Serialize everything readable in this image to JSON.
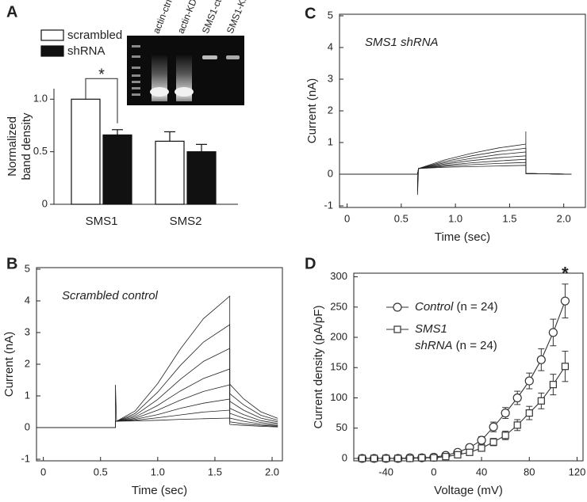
{
  "chart_data": [
    {
      "panel": "A",
      "type": "bar",
      "ylabel": [
        "Normalized",
        "band density"
      ],
      "categories": [
        "SMS1",
        "SMS2"
      ],
      "ylim": [
        0,
        1.1
      ],
      "yticks": [
        0,
        0.5,
        {
          "value": 1,
          "label": "1.0"
        }
      ],
      "series": [
        {
          "name": "scrambled",
          "color": "#ffffff",
          "values": [
            1,
            0.6
          ],
          "errors": [
            null,
            0.09
          ]
        },
        {
          "name": "shRNA",
          "color": "#111111",
          "values": [
            0.66,
            0.5
          ],
          "errors": [
            0.05,
            0.07
          ]
        }
      ],
      "legend": "upper-left",
      "significance": "*",
      "gel_lanes": [
        "actin-ctrl",
        "actin-KD",
        "SMS1-ctrl",
        "SMS1-KD"
      ]
    },
    {
      "panel": "B",
      "type": "line",
      "annotation": "Scrambled control",
      "xlabel": "Time (sec)",
      "ylabel": "Current (nA)",
      "xlim": [
        -0.06,
        2.09
      ],
      "ylim": [
        -1.05,
        5.05
      ],
      "xticks": [
        0,
        0.5,
        {
          "value": 1,
          "label": "1.0"
        },
        1.5,
        {
          "value": 2,
          "label": "2.0"
        }
      ],
      "yticks": [
        -1,
        0,
        1,
        2,
        3,
        4,
        5
      ],
      "x": [
        -0.06,
        0.63,
        0.63,
        0.64,
        0.8,
        1.0,
        1.2,
        1.4,
        1.63,
        1.63,
        1.75,
        1.9,
        2.05
      ],
      "series": [
        {
          "color": "#222222",
          "values": [
            0,
            0,
            1.35,
            0.2,
            0.52,
            1.39,
            2.49,
            3.44,
            4.15,
            1.37,
            0.91,
            0.5,
            0.29
          ]
        },
        {
          "color": "#222222",
          "values": [
            0,
            0,
            0.2,
            0.2,
            0.44,
            1.12,
            1.97,
            2.7,
            3.25,
            1.07,
            0.72,
            0.39,
            0.23
          ]
        },
        {
          "color": "#222222",
          "values": [
            0,
            0,
            0.2,
            0.2,
            0.38,
            0.89,
            1.53,
            2.09,
            2.5,
            0.83,
            0.55,
            0.3,
            0.18
          ]
        },
        {
          "color": "#222222",
          "values": [
            0,
            0,
            0.2,
            0.2,
            0.33,
            0.7,
            1.16,
            1.55,
            1.85,
            0.61,
            0.41,
            0.22,
            0.13
          ]
        },
        {
          "color": "#222222",
          "values": [
            0,
            0,
            0.2,
            0.2,
            0.29,
            0.55,
            0.87,
            1.14,
            1.35,
            0.45,
            0.3,
            0.16,
            0.09
          ]
        },
        {
          "color": "#222222",
          "values": [
            0,
            0,
            0.2,
            0.2,
            0.26,
            0.41,
            0.61,
            0.77,
            0.9,
            0.3,
            0.2,
            0.11,
            0.06
          ]
        },
        {
          "color": "#222222",
          "values": [
            0,
            0,
            0.2,
            0.2,
            0.23,
            0.31,
            0.4,
            0.49,
            0.55,
            0.18,
            0.12,
            0.07,
            0.04
          ]
        },
        {
          "color": "#222222",
          "values": [
            0,
            0,
            0.2,
            0.2,
            0.21,
            0.23,
            0.26,
            0.28,
            0.3,
            0.1,
            0.07,
            0.04,
            0.02
          ]
        }
      ]
    },
    {
      "panel": "C",
      "type": "line",
      "annotation": "SMS1 shRNA",
      "xlabel": "Time (sec)",
      "ylabel": "Current (nA)",
      "xlim": [
        -0.07,
        2.2
      ],
      "ylim": [
        -1.05,
        5.05
      ],
      "xticks": [
        0,
        0.5,
        {
          "value": 1,
          "label": "1.0"
        },
        1.5,
        {
          "value": 2,
          "label": "2.0"
        }
      ],
      "yticks": [
        -1,
        0,
        1,
        2,
        3,
        4,
        5
      ],
      "x": [
        -0.07,
        0.65,
        0.65,
        0.66,
        0.9,
        1.15,
        1.4,
        1.65,
        1.65,
        1.65,
        2.07
      ],
      "series": [
        {
          "color": "#222222",
          "values": [
            0,
            0,
            -0.65,
            0.18,
            0.45,
            0.66,
            0.83,
            0.95,
            1.35,
            0.02,
            0
          ]
        },
        {
          "color": "#222222",
          "values": [
            0,
            0,
            0,
            0.18,
            0.4,
            0.58,
            0.72,
            0.82,
            0.82,
            0.02,
            0
          ]
        },
        {
          "color": "#222222",
          "values": [
            0,
            0,
            0,
            0.18,
            0.36,
            0.5,
            0.62,
            0.7,
            0.7,
            0.02,
            0
          ]
        },
        {
          "color": "#222222",
          "values": [
            0,
            0,
            0,
            0.18,
            0.32,
            0.43,
            0.52,
            0.58,
            0.58,
            0.02,
            0
          ]
        },
        {
          "color": "#222222",
          "values": [
            0,
            0,
            0,
            0.18,
            0.28,
            0.36,
            0.42,
            0.47,
            0.47,
            0.02,
            0
          ]
        },
        {
          "color": "#222222",
          "values": [
            0,
            0,
            0,
            0.18,
            0.25,
            0.3,
            0.34,
            0.37,
            0.37,
            0.02,
            0
          ]
        },
        {
          "color": "#222222",
          "values": [
            0,
            0,
            0,
            0.18,
            0.22,
            0.24,
            0.26,
            0.28,
            0.28,
            0.02,
            0
          ]
        }
      ]
    },
    {
      "panel": "D",
      "type": "line",
      "xlabel": "Voltage (mV)",
      "ylabel": "Current density (pA/pF)",
      "xlim": [
        -67,
        125
      ],
      "ylim": [
        -4,
        306
      ],
      "xticks": [
        -40,
        0,
        40,
        80,
        120
      ],
      "yticks": [
        0,
        50,
        100,
        150,
        200,
        250,
        300
      ],
      "x": [
        -60,
        -50,
        -40,
        -30,
        -20,
        -10,
        0,
        10,
        20,
        30,
        40,
        50,
        60,
        70,
        80,
        90,
        100,
        110
      ],
      "series": [
        {
          "name": "Control (n = 24)",
          "color": "#333333",
          "marker": "circle",
          "values": [
            0,
            0,
            0,
            0,
            1,
            1,
            2,
            5,
            10,
            18,
            30,
            52,
            75,
            100,
            128,
            163,
            208,
            260
          ],
          "errors": [
            2,
            2,
            2,
            2,
            2,
            2,
            2,
            3,
            4,
            5,
            6,
            8,
            9,
            11,
            13,
            18,
            22,
            28
          ]
        },
        {
          "name": "SMS1 shRNA (n = 24)",
          "color": "#333333",
          "marker": "square",
          "values": [
            0,
            0,
            0,
            0,
            0,
            1,
            1,
            3,
            6,
            10,
            17,
            27,
            38,
            55,
            75,
            95,
            122,
            152
          ],
          "errors": [
            2,
            2,
            2,
            2,
            2,
            2,
            2,
            2,
            3,
            4,
            5,
            6,
            7,
            9,
            11,
            13,
            17,
            25
          ]
        }
      ],
      "legend": "upper-left",
      "significance": "*"
    }
  ]
}
